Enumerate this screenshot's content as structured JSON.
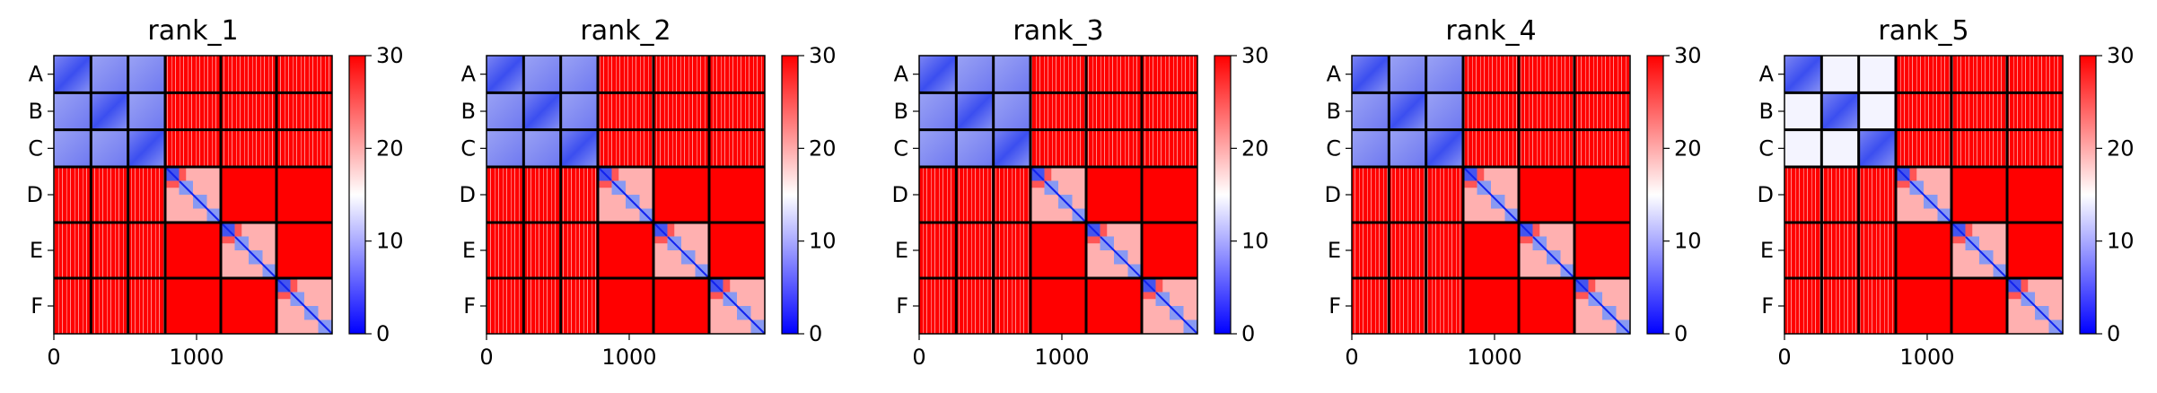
{
  "chart_data": {
    "type": "heatmap",
    "panels": [
      {
        "title": "rank_1",
        "blues": [
          [
            1,
            2
          ],
          [
            1,
            3
          ],
          [
            2,
            3
          ]
        ]
      },
      {
        "title": "rank_2",
        "blues": [
          [
            1,
            2
          ],
          [
            1,
            3
          ],
          [
            2,
            3
          ]
        ]
      },
      {
        "title": "rank_3",
        "blues": [
          [
            1,
            2
          ],
          [
            1,
            3
          ],
          [
            2,
            3
          ]
        ]
      },
      {
        "title": "rank_4",
        "blues": [
          [
            1,
            2
          ],
          [
            1,
            3
          ],
          [
            2,
            3
          ]
        ]
      },
      {
        "title": "rank_5",
        "blues": []
      }
    ],
    "y_tick_labels": [
      "A",
      "B",
      "C",
      "D",
      "E",
      "F"
    ],
    "x_ticks": [
      0,
      1000
    ],
    "x_tick_labels": [
      "0",
      "1000"
    ],
    "x_range": [
      0,
      1950
    ],
    "groups": [
      {
        "label": "A",
        "start": 0,
        "end": 260
      },
      {
        "label": "B",
        "start": 260,
        "end": 520
      },
      {
        "label": "C",
        "start": 520,
        "end": 780
      },
      {
        "label": "D",
        "start": 780,
        "end": 1170
      },
      {
        "label": "E",
        "start": 1170,
        "end": 1560
      },
      {
        "label": "F",
        "start": 1560,
        "end": 1950
      }
    ],
    "colorbar": {
      "min": 0,
      "max": 30,
      "ticks": [
        0,
        10,
        20,
        30
      ],
      "colormap": "bwr",
      "low_color": "#0000ff",
      "mid_color": "#ffffff",
      "high_color": "#ff0000"
    }
  }
}
